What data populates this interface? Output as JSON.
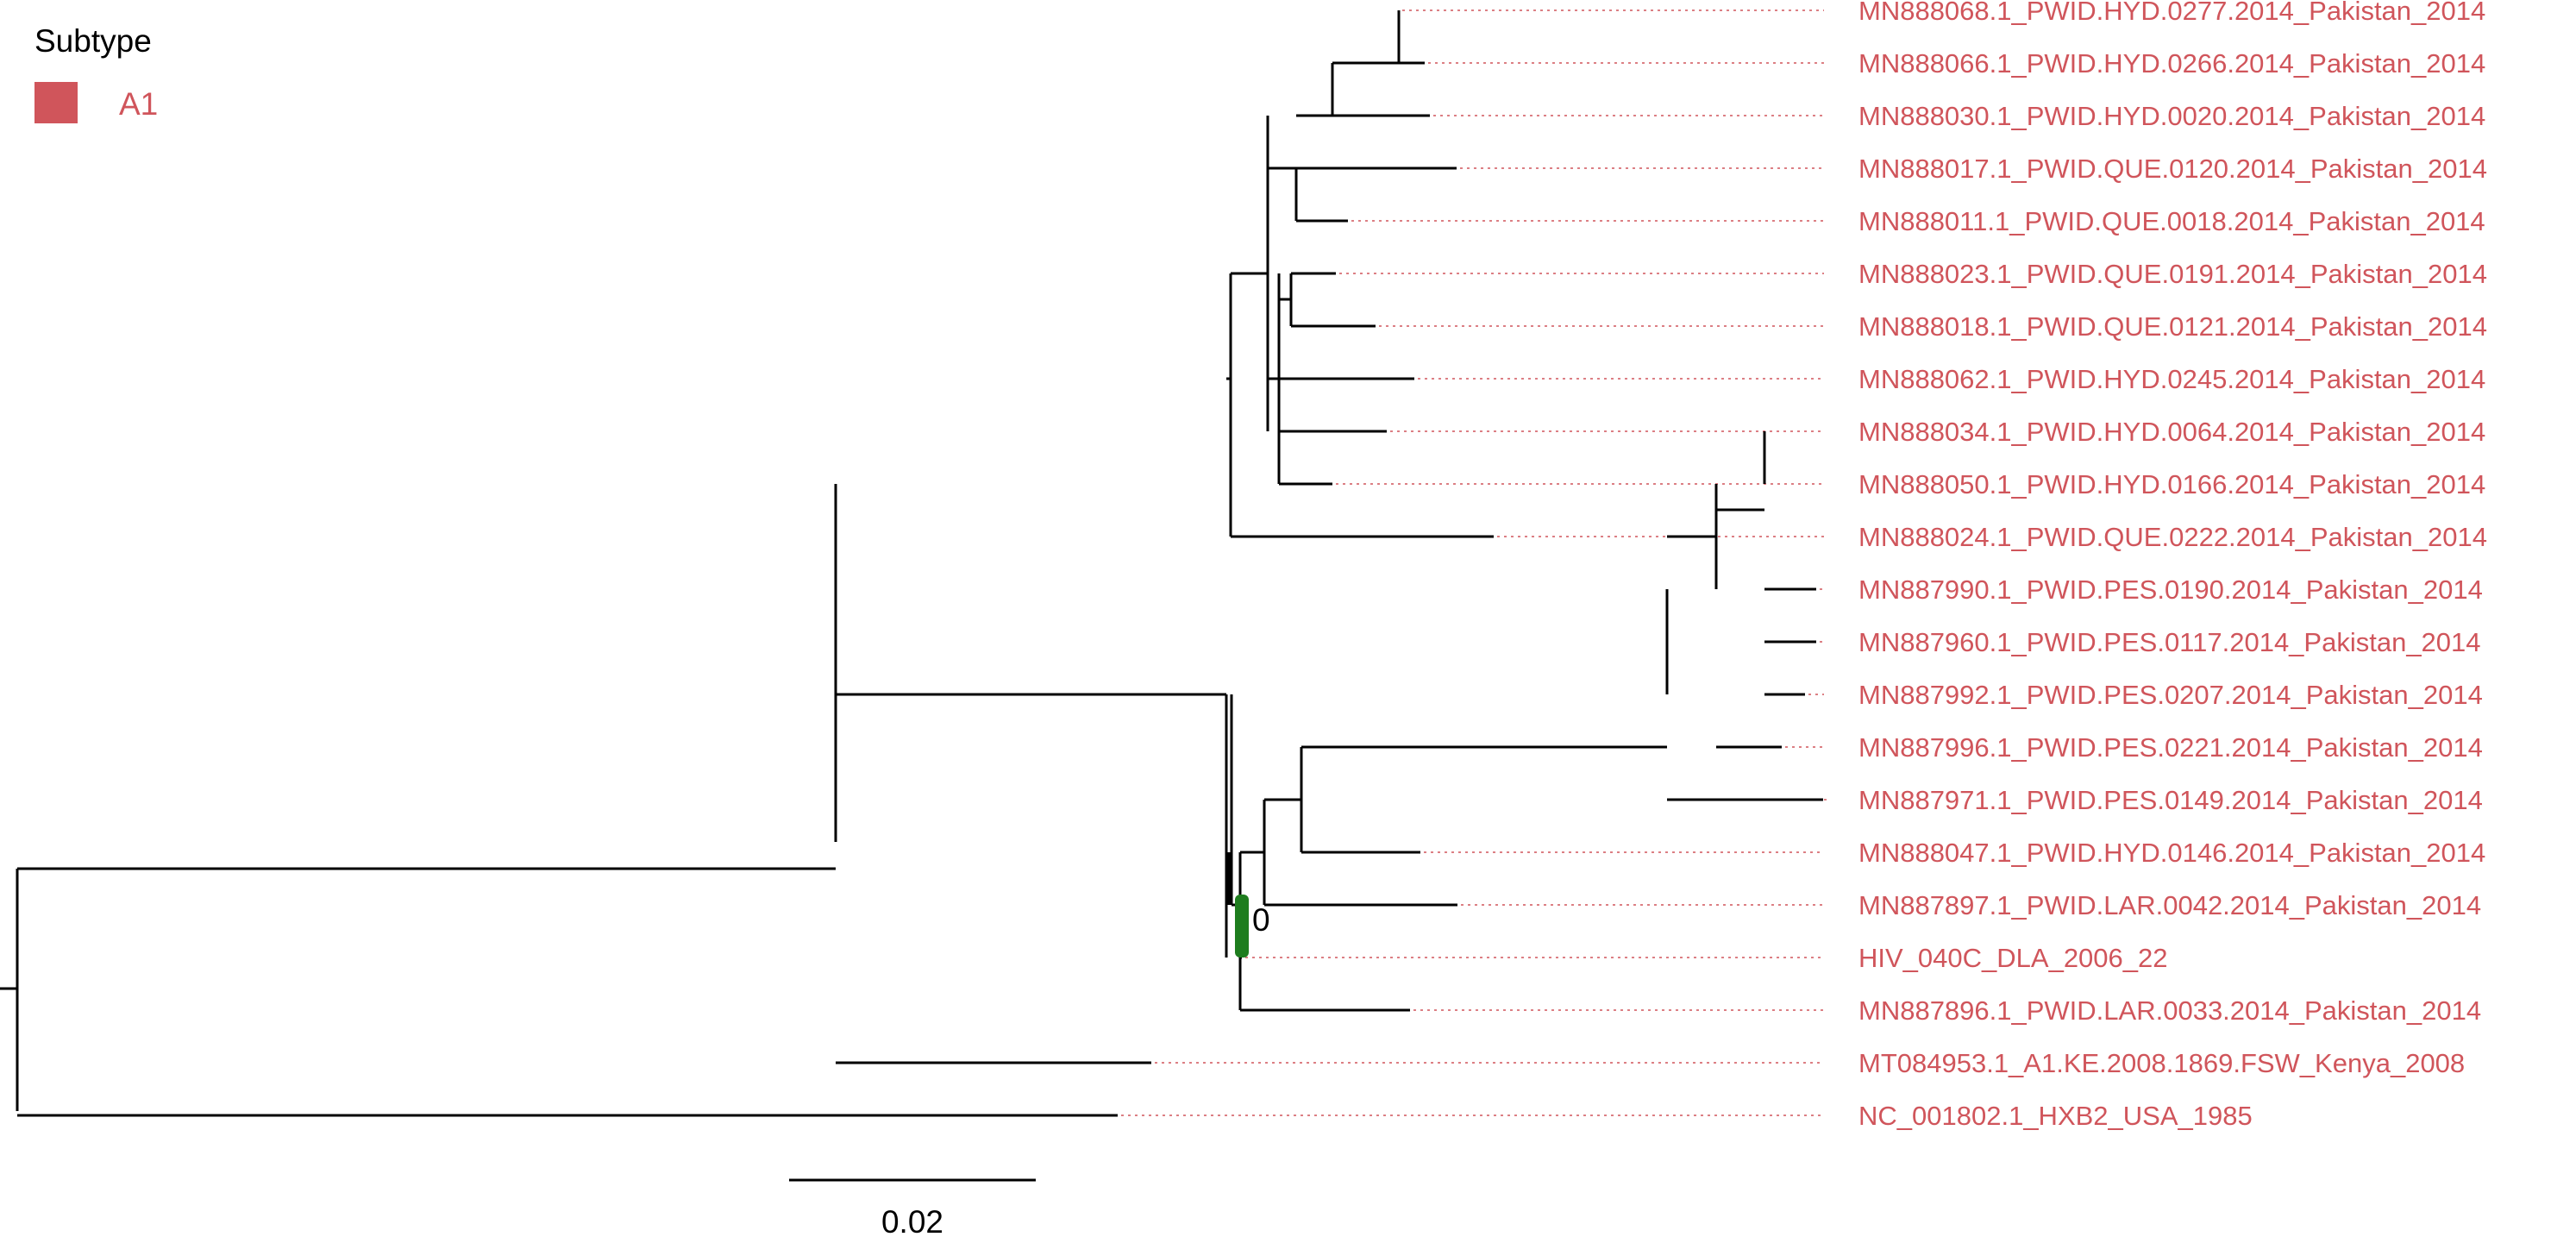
{
  "colors": {
    "branch": "#000000",
    "subtype_a1": "#d0555b",
    "node_bar": "#1e7d1e",
    "guide": "#d0555b"
  },
  "legend": {
    "title": "Subtype",
    "items": [
      {
        "label": "A1",
        "color": "#d0555b"
      }
    ]
  },
  "scale_bar": {
    "value": 0.02,
    "label": "0.02"
  },
  "node_annotation": {
    "label": "0"
  },
  "tree": {
    "type": "phylogram",
    "tips": [
      {
        "label": "MN888068.1_PWID.HYD.0277.2014_Pakistan_2014",
        "subtype": "A1"
      },
      {
        "label": "MN888066.1_PWID.HYD.0266.2014_Pakistan_2014",
        "subtype": "A1"
      },
      {
        "label": "MN888030.1_PWID.HYD.0020.2014_Pakistan_2014",
        "subtype": "A1"
      },
      {
        "label": "MN888017.1_PWID.QUE.0120.2014_Pakistan_2014",
        "subtype": "A1"
      },
      {
        "label": "MN888011.1_PWID.QUE.0018.2014_Pakistan_2014",
        "subtype": "A1"
      },
      {
        "label": "MN888023.1_PWID.QUE.0191.2014_Pakistan_2014",
        "subtype": "A1"
      },
      {
        "label": "MN888018.1_PWID.QUE.0121.2014_Pakistan_2014",
        "subtype": "A1"
      },
      {
        "label": "MN888062.1_PWID.HYD.0245.2014_Pakistan_2014",
        "subtype": "A1"
      },
      {
        "label": "MN888034.1_PWID.HYD.0064.2014_Pakistan_2014",
        "subtype": "A1"
      },
      {
        "label": "MN888050.1_PWID.HYD.0166.2014_Pakistan_2014",
        "subtype": "A1"
      },
      {
        "label": "MN888024.1_PWID.QUE.0222.2014_Pakistan_2014",
        "subtype": "A1"
      },
      {
        "label": "MN887990.1_PWID.PES.0190.2014_Pakistan_2014",
        "subtype": "A1"
      },
      {
        "label": "MN887960.1_PWID.PES.0117.2014_Pakistan_2014",
        "subtype": "A1"
      },
      {
        "label": "MN887992.1_PWID.PES.0207.2014_Pakistan_2014",
        "subtype": "A1"
      },
      {
        "label": "MN887996.1_PWID.PES.0221.2014_Pakistan_2014",
        "subtype": "A1"
      },
      {
        "label": "MN887971.1_PWID.PES.0149.2014_Pakistan_2014",
        "subtype": "A1"
      },
      {
        "label": "MN888047.1_PWID.HYD.0146.2014_Pakistan_2014",
        "subtype": "A1"
      },
      {
        "label": "MN887897.1_PWID.LAR.0042.2014_Pakistan_2014",
        "subtype": "A1"
      },
      {
        "label": "HIV_040C_DLA_2006_22",
        "subtype": "A1"
      },
      {
        "label": "MN887896.1_PWID.LAR.0033.2014_Pakistan_2014",
        "subtype": "A1"
      },
      {
        "label": "MT084953.1_A1.KE.2008.1869.FSW_Kenya_2008",
        "subtype": "A1"
      },
      {
        "label": "NC_001802.1_HXB2_USA_1985",
        "subtype": "A1"
      }
    ]
  }
}
